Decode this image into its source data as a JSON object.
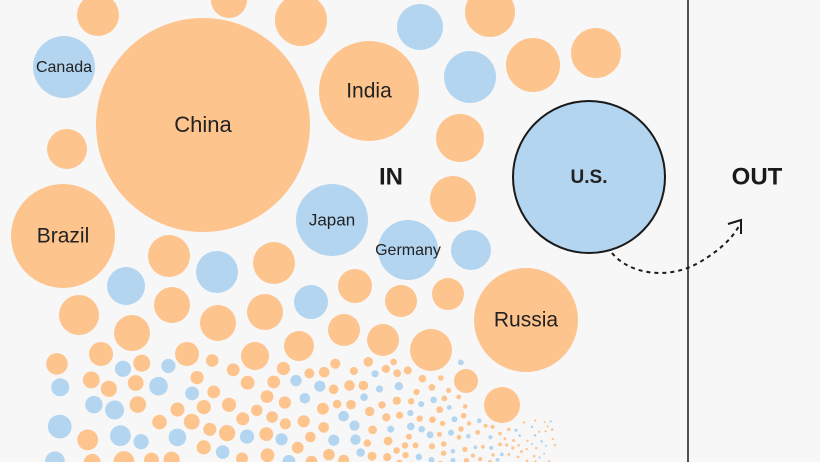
{
  "colors": {
    "background": "#f7f7f7",
    "in_country": "#fdc48e",
    "highlight_country": "#b3d5f0",
    "line": "#1a1a1a"
  },
  "labels": {
    "in": "IN",
    "out": "OUT"
  },
  "countries": [
    {
      "name": "China",
      "color": "orange"
    },
    {
      "name": "India",
      "color": "orange"
    },
    {
      "name": "Canada",
      "color": "blue"
    },
    {
      "name": "Brazil",
      "color": "orange"
    },
    {
      "name": "Japan",
      "color": "blue"
    },
    {
      "name": "Germany",
      "color": "blue"
    },
    {
      "name": "Russia",
      "color": "orange"
    },
    {
      "name": "U.S.",
      "color": "blue",
      "outlined": true
    }
  ]
}
